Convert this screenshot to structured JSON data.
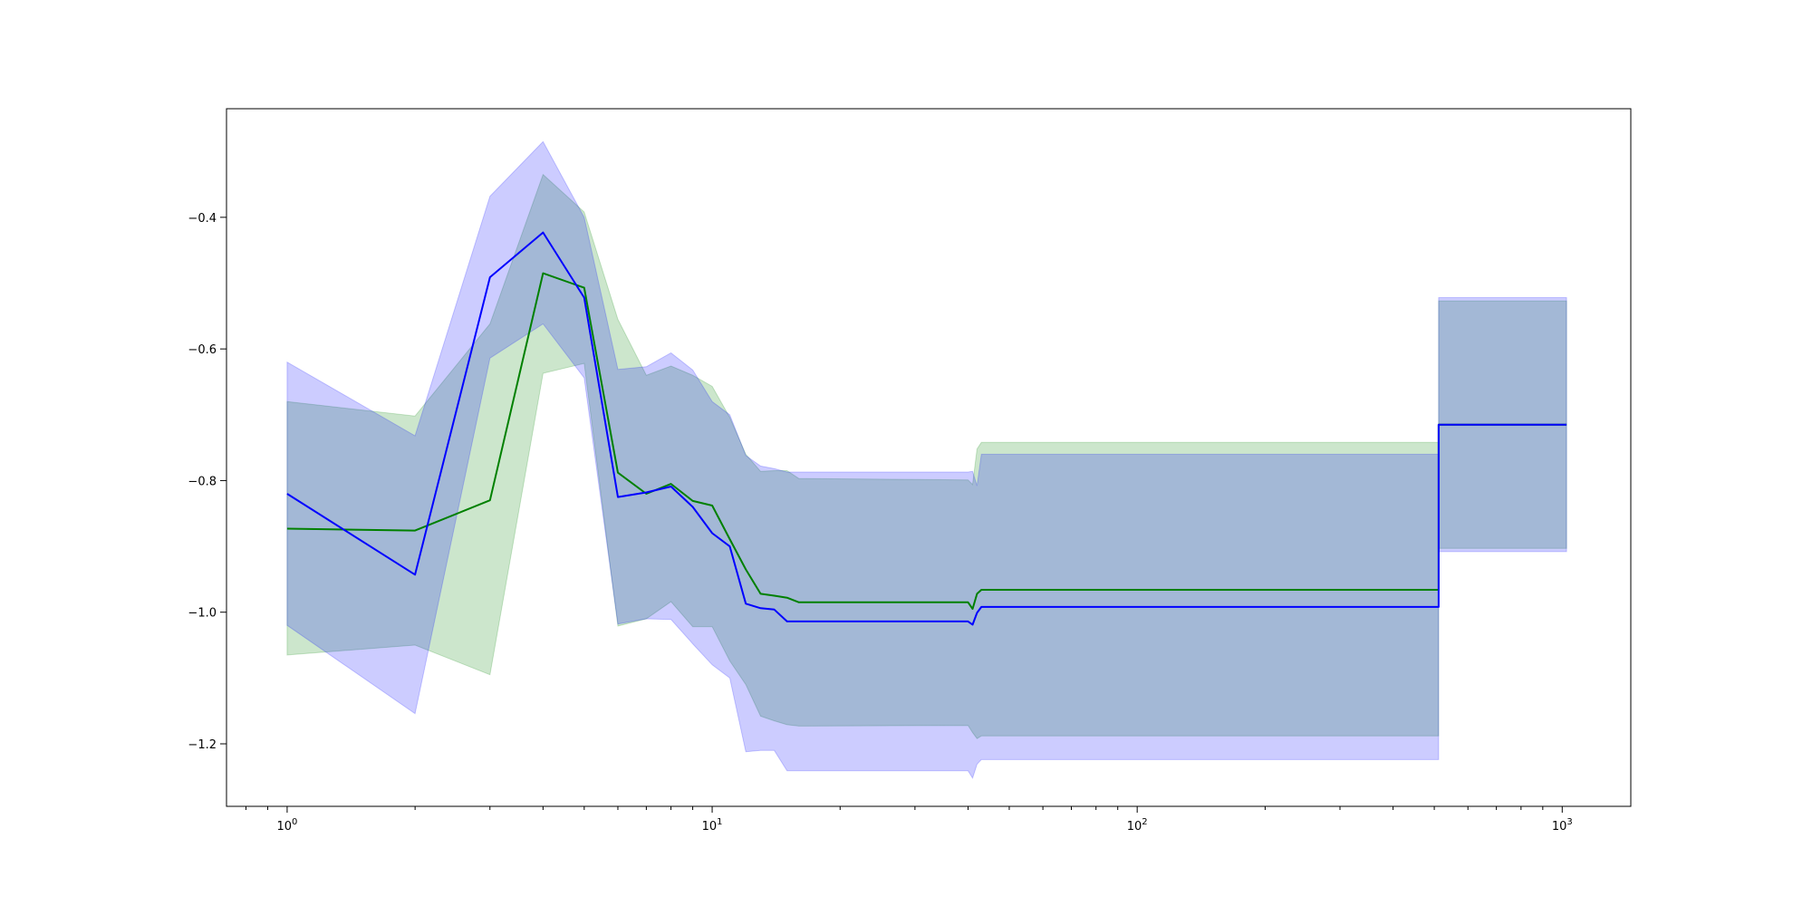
{
  "chart_data": {
    "type": "line",
    "title": "",
    "xlabel": "",
    "ylabel": "",
    "x_scale": "log",
    "xlim": [
      0.72,
      1450
    ],
    "ylim": [
      -1.295,
      -0.235
    ],
    "grid": false,
    "x_ticks": [
      {
        "value": 1,
        "base": "10",
        "exp": "0"
      },
      {
        "value": 10,
        "base": "10",
        "exp": "1"
      },
      {
        "value": 100,
        "base": "10",
        "exp": "2"
      },
      {
        "value": 1000,
        "base": "10",
        "exp": "3"
      }
    ],
    "y_ticks": [
      {
        "value": -1.2,
        "label": "−1.2"
      },
      {
        "value": -1.0,
        "label": "−1.0"
      },
      {
        "value": -0.8,
        "label": "−0.8"
      },
      {
        "value": -0.6,
        "label": "−0.6"
      },
      {
        "value": -0.4,
        "label": "−0.4"
      }
    ],
    "series": [
      {
        "color": "#008000",
        "band_color": "#008000",
        "band_opacity": 0.2,
        "points": [
          [
            1,
            -0.873,
            -0.68,
            -1.065
          ],
          [
            2,
            -0.876,
            -0.702,
            -1.05
          ],
          [
            3,
            -0.83,
            -0.562,
            -1.095
          ],
          [
            4,
            -0.485,
            -0.335,
            -0.637
          ],
          [
            5,
            -0.507,
            -0.392,
            -0.622
          ],
          [
            6,
            -0.788,
            -0.555,
            -1.021
          ],
          [
            7,
            -0.82,
            -0.64,
            -1.01
          ],
          [
            8,
            -0.805,
            -0.626,
            -0.984
          ],
          [
            9,
            -0.831,
            -0.64,
            -1.022
          ],
          [
            10,
            -0.838,
            -0.657,
            -1.022
          ],
          [
            11,
            -0.889,
            -0.704,
            -1.074
          ],
          [
            12,
            -0.935,
            -0.76,
            -1.11
          ],
          [
            13,
            -0.972,
            -0.786,
            -1.158
          ],
          [
            14,
            -0.975,
            -0.785,
            -1.165
          ],
          [
            15,
            -0.978,
            -0.785,
            -1.171
          ],
          [
            16,
            -0.985,
            -0.797,
            -1.173
          ],
          [
            40,
            -0.985,
            -0.799,
            -1.172
          ],
          [
            41,
            -0.995,
            -0.806,
            -1.183
          ],
          [
            42,
            -0.972,
            -0.752,
            -1.192
          ],
          [
            43,
            -0.966,
            -0.742,
            -1.188
          ],
          [
            512,
            -0.966,
            -0.742,
            -1.188
          ],
          [
            512,
            -0.715,
            -0.527,
            -0.903
          ],
          [
            1024,
            -0.715,
            -0.527,
            -0.903
          ]
        ]
      },
      {
        "color": "#0000ff",
        "band_color": "#0000ff",
        "band_opacity": 0.2,
        "points": [
          [
            1,
            -0.82,
            -0.62,
            -1.02
          ],
          [
            2,
            -0.943,
            -0.732,
            -1.154
          ],
          [
            3,
            -0.491,
            -0.368,
            -0.614
          ],
          [
            4,
            -0.423,
            -0.285,
            -0.562
          ],
          [
            5,
            -0.522,
            -0.4,
            -0.644
          ],
          [
            6,
            -0.825,
            -0.631,
            -1.018
          ],
          [
            7,
            -0.818,
            -0.627,
            -1.01
          ],
          [
            8,
            -0.809,
            -0.606,
            -1.011
          ],
          [
            9,
            -0.84,
            -0.632,
            -1.048
          ],
          [
            10,
            -0.88,
            -0.68,
            -1.08
          ],
          [
            11,
            -0.9,
            -0.7,
            -1.1
          ],
          [
            12,
            -0.987,
            -0.762,
            -1.212
          ],
          [
            13,
            -0.994,
            -0.778,
            -1.21
          ],
          [
            14,
            -0.996,
            -0.782,
            -1.21
          ],
          [
            15,
            -1.014,
            -0.787,
            -1.241
          ],
          [
            40,
            -1.014,
            -0.787,
            -1.241
          ],
          [
            41,
            -1.019,
            -0.786,
            -1.252
          ],
          [
            42,
            -1.001,
            -0.808,
            -1.231
          ],
          [
            43,
            -0.992,
            -0.76,
            -1.224
          ],
          [
            512,
            -0.992,
            -0.76,
            -1.224
          ],
          [
            512,
            -0.715,
            -0.522,
            -0.908
          ],
          [
            1024,
            -0.715,
            -0.522,
            -0.908
          ]
        ]
      }
    ]
  }
}
